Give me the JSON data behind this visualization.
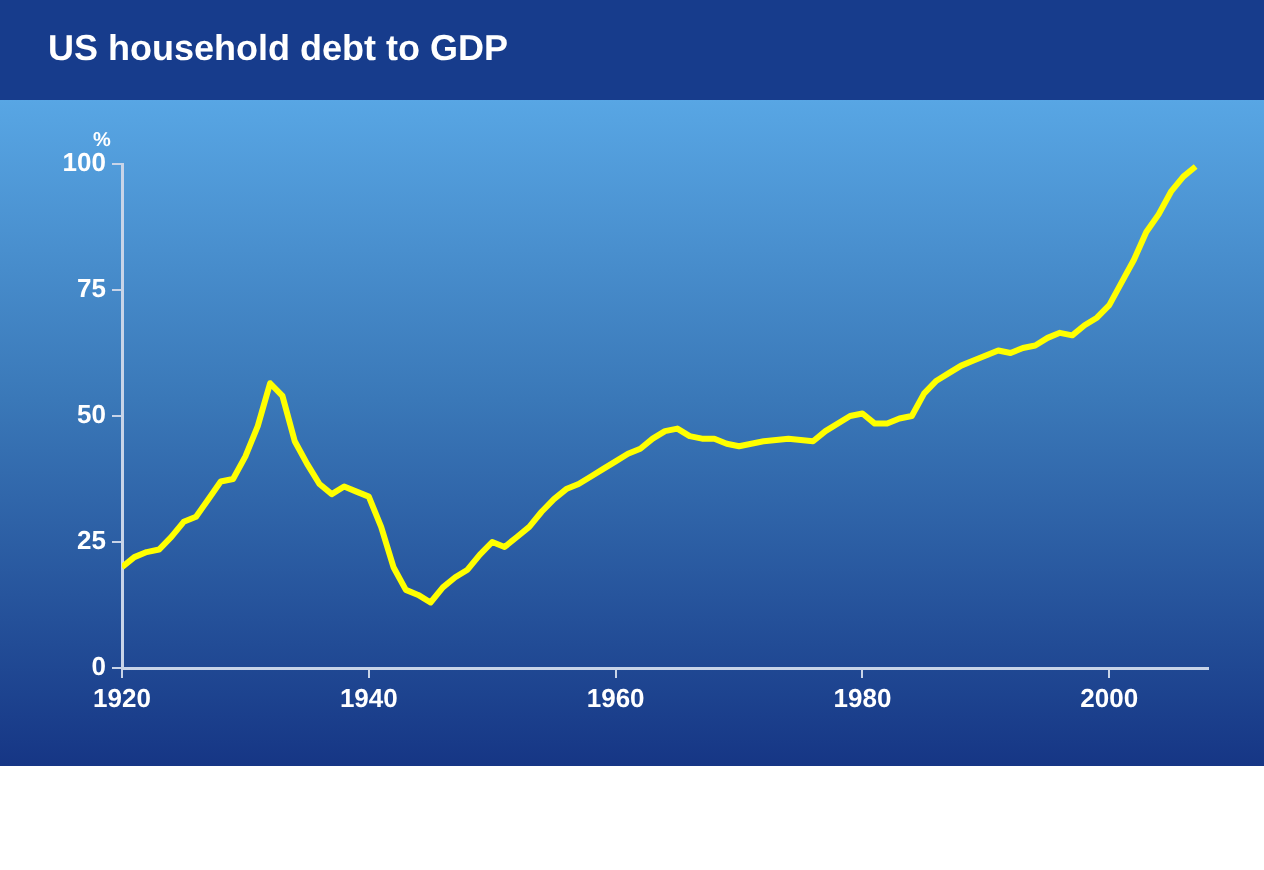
{
  "chart_data": {
    "type": "line",
    "title": "US household debt to GDP",
    "ylabel": "%",
    "x": [
      1920,
      1921,
      1922,
      1923,
      1924,
      1925,
      1926,
      1927,
      1928,
      1929,
      1930,
      1931,
      1932,
      1933,
      1934,
      1935,
      1936,
      1937,
      1938,
      1939,
      1940,
      1941,
      1942,
      1943,
      1944,
      1945,
      1946,
      1947,
      1948,
      1949,
      1950,
      1951,
      1952,
      1953,
      1954,
      1955,
      1956,
      1957,
      1958,
      1959,
      1960,
      1961,
      1962,
      1963,
      1964,
      1965,
      1966,
      1967,
      1968,
      1969,
      1970,
      1972,
      1974,
      1976,
      1977,
      1979,
      1980,
      1981,
      1982,
      1983,
      1984,
      1985,
      1986,
      1987,
      1988,
      1989,
      1990,
      1991,
      1992,
      1993,
      1994,
      1995,
      1996,
      1997,
      1998,
      1999,
      2000,
      2001,
      2002,
      2003,
      2004,
      2005,
      2006,
      2007
    ],
    "series": [
      {
        "color": "#ffff00",
        "values": [
          20,
          22,
          23,
          23.5,
          26,
          29,
          30,
          33.5,
          37,
          37.5,
          42,
          48,
          56.5,
          54,
          45,
          40.5,
          36.5,
          34.5,
          36,
          35,
          34,
          28,
          20,
          15.5,
          14.5,
          13,
          16,
          18,
          19.5,
          22.5,
          25,
          24,
          26,
          28,
          31,
          33.5,
          35.5,
          36.5,
          38,
          39.5,
          41,
          42.5,
          43.5,
          45.5,
          47,
          47.5,
          46,
          45.5,
          45.5,
          44.5,
          44,
          45,
          45.5,
          45,
          47,
          50,
          50.5,
          48.5,
          48.5,
          49.5,
          50,
          54.5,
          57,
          58.5,
          60,
          61,
          62,
          63,
          62.5,
          63.5,
          64,
          65.5,
          66.5,
          66,
          68,
          69.5,
          72,
          76.5,
          81,
          86.5,
          90,
          94.5,
          97.5,
          99.5
        ]
      }
    ],
    "xlim": [
      1920,
      2008
    ],
    "xticks": [
      1920,
      1940,
      1960,
      1980,
      2000
    ],
    "ylim": [
      0,
      100
    ],
    "yticks": [
      0,
      25,
      50,
      75,
      100
    ],
    "grid": false,
    "legend": false,
    "marker": "none",
    "line_style": "solid"
  }
}
